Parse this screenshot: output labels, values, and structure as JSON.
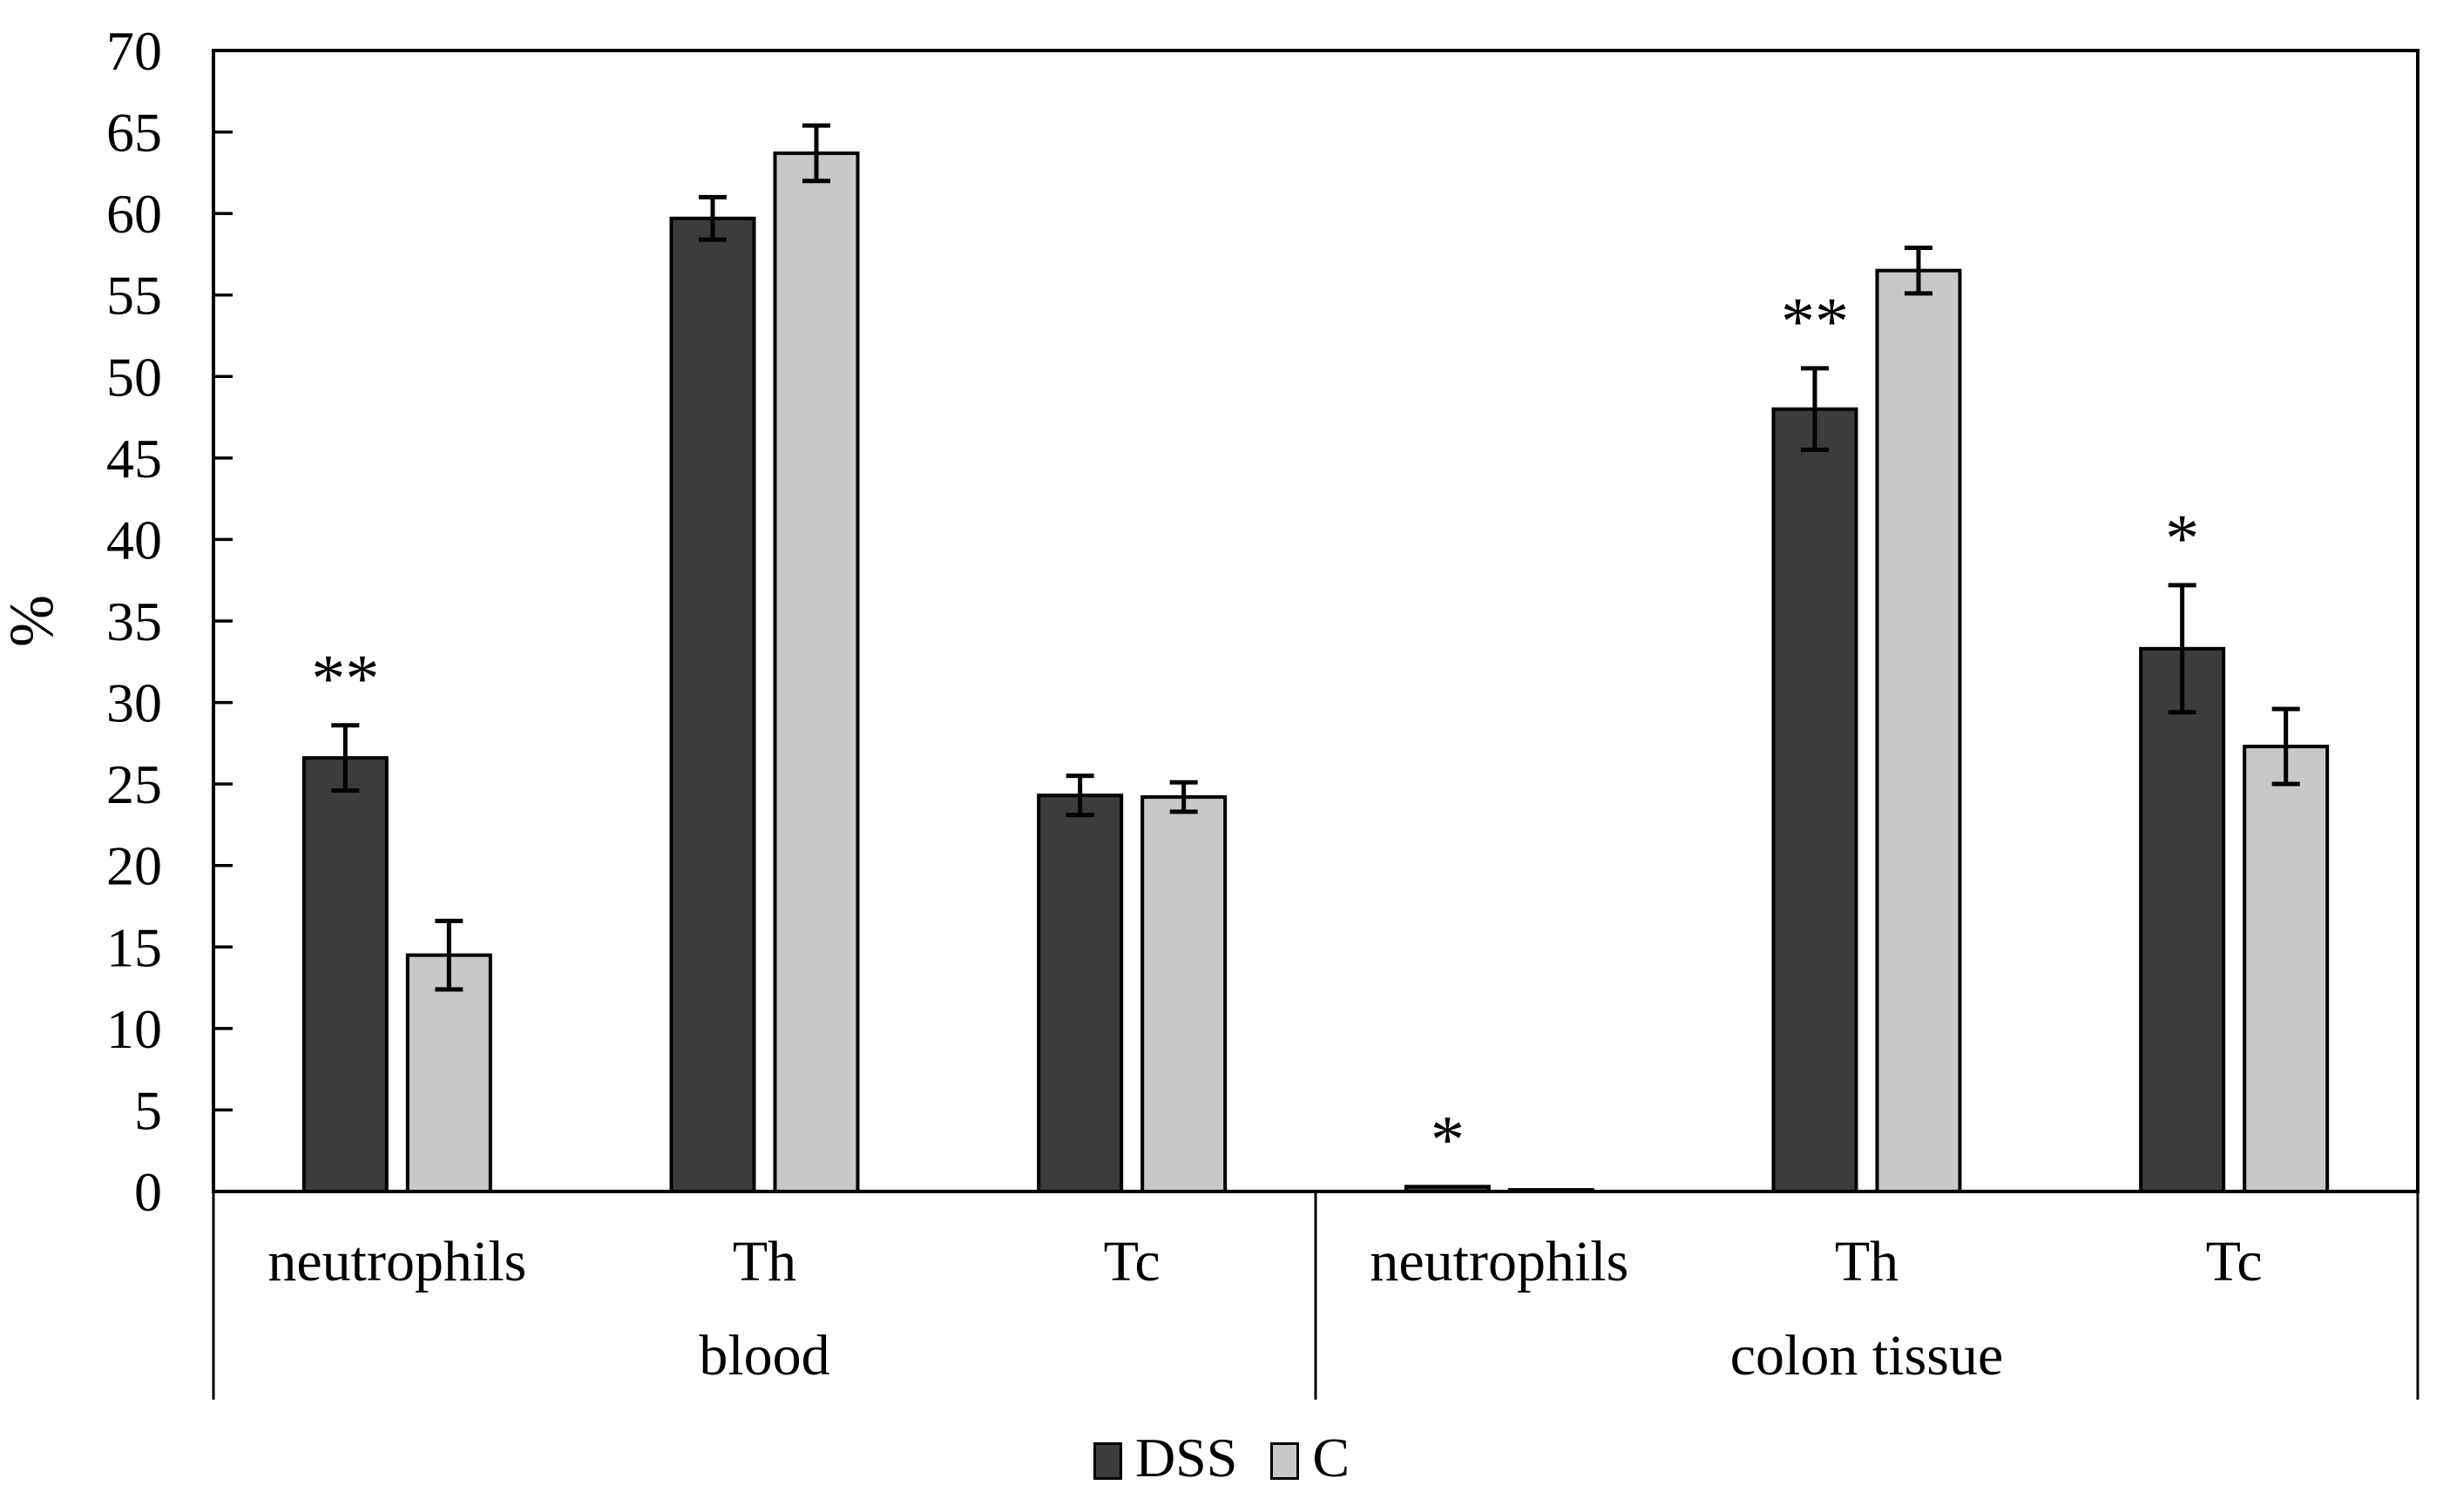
{
  "figure": {
    "background": "#ffffff",
    "text_color": "#000000"
  },
  "y_axis": {
    "label": "%",
    "min": 0,
    "max": 70,
    "tick_step": 5
  },
  "x_axis": {
    "category_row": [
      "neutrophils",
      "Th",
      "Tc",
      "neutrophils",
      "Th",
      "Tc"
    ],
    "group_row": [
      "blood",
      "colon tissue"
    ]
  },
  "legend": {
    "items": [
      {
        "label": "DSS"
      },
      {
        "label": "C"
      }
    ],
    "position": "bottom-center"
  },
  "chart_data": {
    "type": "bar",
    "title": "",
    "xlabel": "",
    "ylabel": "%",
    "ylim": [
      0,
      70
    ],
    "ytick_step": 5,
    "yticks": [
      0,
      5,
      10,
      15,
      20,
      25,
      30,
      35,
      40,
      45,
      50,
      55,
      60,
      65,
      70
    ],
    "grid": false,
    "legend_position": "bottom-center",
    "group_labels": [
      "blood",
      "colon tissue"
    ],
    "categories": [
      "neutrophils",
      "Th",
      "Tc",
      "neutrophils",
      "Th",
      "Tc"
    ],
    "category_groups": [
      0,
      0,
      0,
      1,
      1,
      1
    ],
    "series": [
      {
        "name": "DSS",
        "color": "#3c3c3c",
        "values": [
          26.6,
          59.7,
          24.3,
          0.3,
          48.0,
          33.3
        ],
        "errors": [
          2.0,
          1.3,
          1.2,
          0,
          2.5,
          3.9
        ],
        "sig": [
          "**",
          "",
          "",
          "*",
          "**",
          "*"
        ]
      },
      {
        "name": "C",
        "color": "#c8c8c8",
        "values": [
          14.5,
          63.7,
          24.2,
          0.1,
          56.5,
          27.3
        ],
        "errors": [
          2.1,
          1.7,
          0.9,
          0,
          1.4,
          2.3
        ],
        "sig": [
          "",
          "",
          "",
          "",
          "",
          ""
        ]
      }
    ],
    "error_bars": "symmetric, capped, drawn on every visible bar",
    "bar_outline_color": "#000000"
  }
}
